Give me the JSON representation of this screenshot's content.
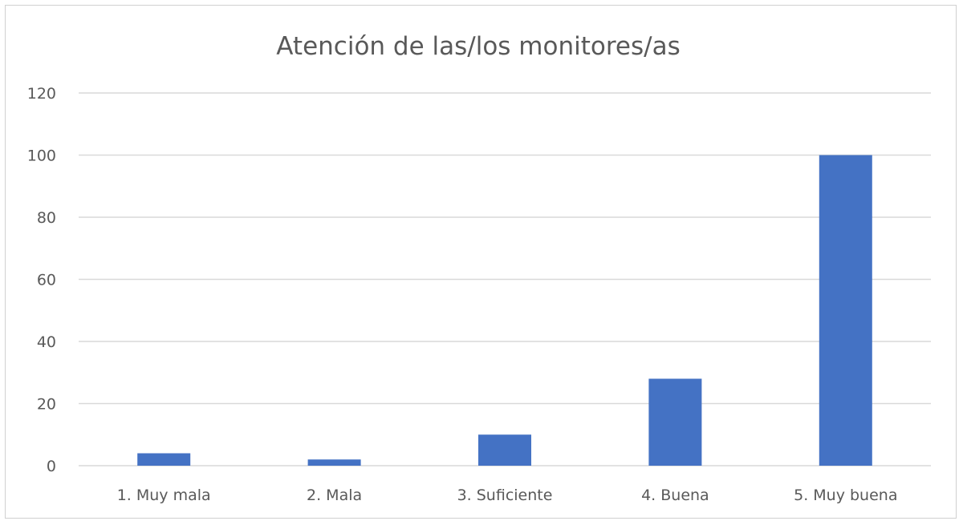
{
  "chart_data": {
    "type": "bar",
    "title": "Atención de las/los monitores/as",
    "xlabel": "",
    "ylabel": "",
    "categories": [
      "1. Muy mala",
      "2. Mala",
      "3. Suficiente",
      "4. Buena",
      "5. Muy buena"
    ],
    "values": [
      4,
      2,
      10,
      28,
      100
    ],
    "ylim": [
      0,
      120
    ],
    "yticks": [
      "0",
      "20",
      "40",
      "60",
      "80",
      "100",
      "120"
    ],
    "grid": true,
    "legend": "none",
    "bar_color": "#4472C4"
  }
}
